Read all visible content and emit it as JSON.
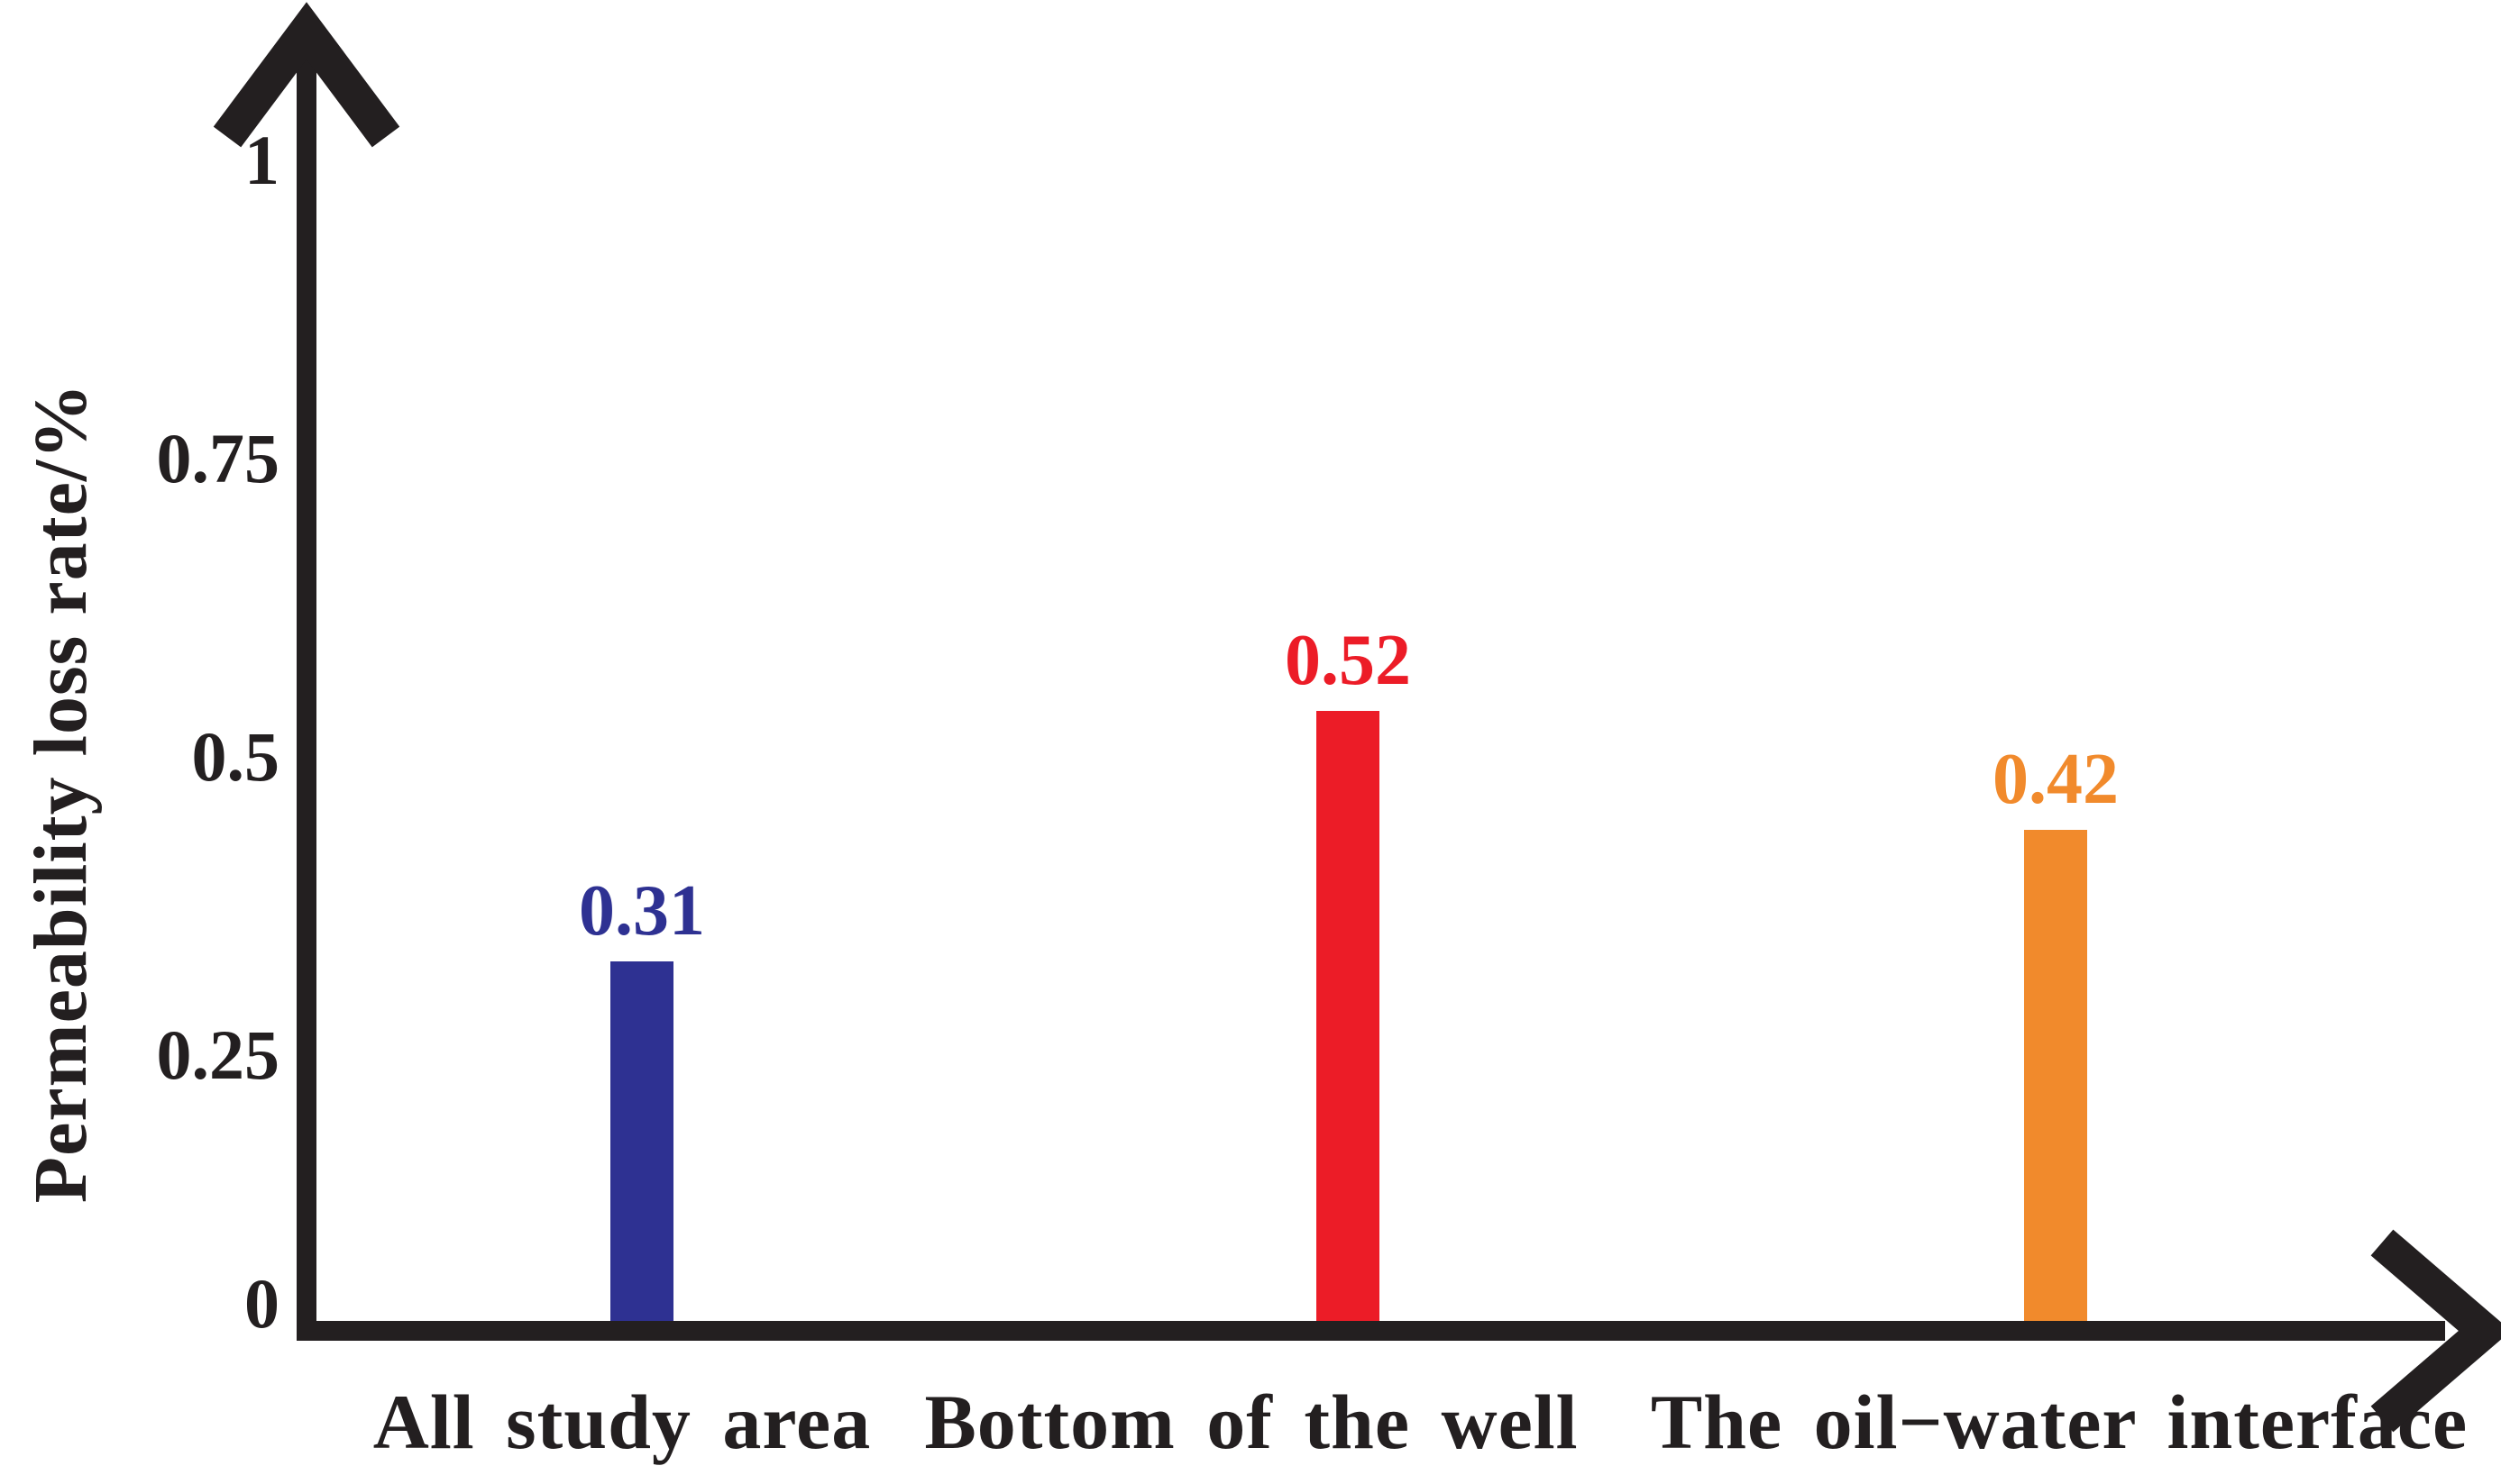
{
  "chart_data": {
    "type": "bar",
    "title": "",
    "xlabel": "",
    "ylabel": "Permeability loss rate/%",
    "categories": [
      "All study area",
      "Bottom of the well",
      "The oil−water interface"
    ],
    "values": [
      0.31,
      0.52,
      0.42
    ],
    "value_labels": [
      "0.31",
      "0.52",
      "0.42"
    ],
    "bar_colors": [
      "#2e3192",
      "#ec1c27",
      "#f18a2c"
    ],
    "yticks": [
      {
        "value": 0,
        "label": "0"
      },
      {
        "value": 0.25,
        "label": "0.25"
      },
      {
        "value": 0.5,
        "label": "0.5"
      },
      {
        "value": 0.75,
        "label": "0.75"
      },
      {
        "value": 1,
        "label": "1"
      }
    ],
    "ylim": [
      0,
      1
    ],
    "grid": false,
    "legend": "none",
    "axis_style": "arrows",
    "axis_color": "#231f20",
    "text_color": "#231f20",
    "background_color": "#ffffff"
  }
}
